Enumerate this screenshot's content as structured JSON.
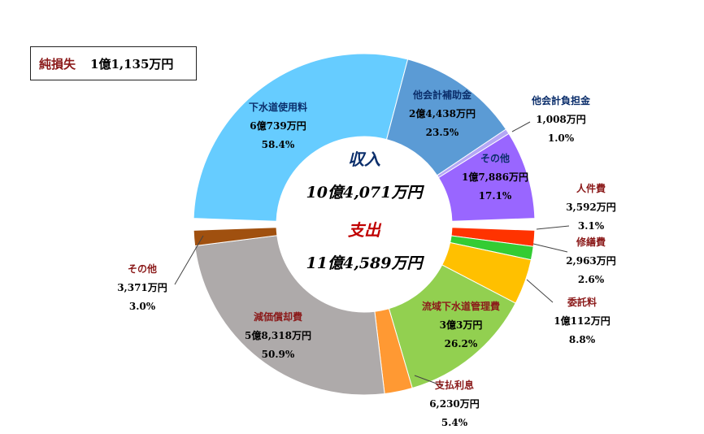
{
  "net_loss": {
    "label": "純損失",
    "value": "1億1,135万円"
  },
  "chart_data": [
    {
      "type": "pie",
      "donut": "revenue",
      "title": "収入",
      "total": "10億4,071万円",
      "slices": [
        {
          "name": "下水道使用料",
          "amount": "6億739万円",
          "percent": 58.4,
          "percent_label": "58.4%",
          "color": "#66ccff",
          "label_color": "#0b2e6b"
        },
        {
          "name": "他会計補助金",
          "amount": "2億4,438万円",
          "percent": 23.5,
          "percent_label": "23.5%",
          "color": "#5b9bd5",
          "label_color": "#0b2e6b"
        },
        {
          "name": "他会計負担金",
          "amount": "1,008万円",
          "percent": 1.0,
          "percent_label": "1.0%",
          "color": "#b4a7f5",
          "label_color": "#0b2e6b"
        },
        {
          "name": "その他",
          "amount": "1億7,886万円",
          "percent": 17.1,
          "percent_label": "17.1%",
          "color": "#9966ff",
          "label_color": "#0b2e6b"
        }
      ]
    },
    {
      "type": "pie",
      "donut": "expenditure",
      "title": "支出",
      "total": "11億4,589万円",
      "slices": [
        {
          "name": "人件費",
          "amount": "3,592万円",
          "percent": 3.1,
          "percent_label": "3.1%",
          "color": "#ff3300",
          "label_color": "#8b1a1a"
        },
        {
          "name": "修繕費",
          "amount": "2,963万円",
          "percent": 2.6,
          "percent_label": "2.6%",
          "color": "#33cc33",
          "label_color": "#8b1a1a"
        },
        {
          "name": "委託料",
          "amount": "1億112万円",
          "percent": 8.8,
          "percent_label": "8.8%",
          "color": "#ffc000",
          "label_color": "#8b1a1a"
        },
        {
          "name": "流域下水道管理費",
          "amount": "3億3万円",
          "percent": 26.2,
          "percent_label": "26.2%",
          "color": "#92d050",
          "label_color": "#8b1a1a"
        },
        {
          "name": "支払利息",
          "amount": "6,230万円",
          "percent": 5.4,
          "percent_label": "5.4%",
          "color": "#ff9933",
          "label_color": "#8b1a1a"
        },
        {
          "name": "減価償却費",
          "amount": "5億8,318万円",
          "percent": 50.9,
          "percent_label": "50.9%",
          "color": "#aeaaaa",
          "label_color": "#8b1a1a"
        },
        {
          "name": "その他",
          "amount": "3,371万円",
          "percent": 3.0,
          "percent_label": "3.0%",
          "color": "#a0500f",
          "label_color": "#8b1a1a"
        }
      ]
    }
  ],
  "center_colors": {
    "revenue": "#0b2e6b",
    "expenditure": "#c00000"
  }
}
